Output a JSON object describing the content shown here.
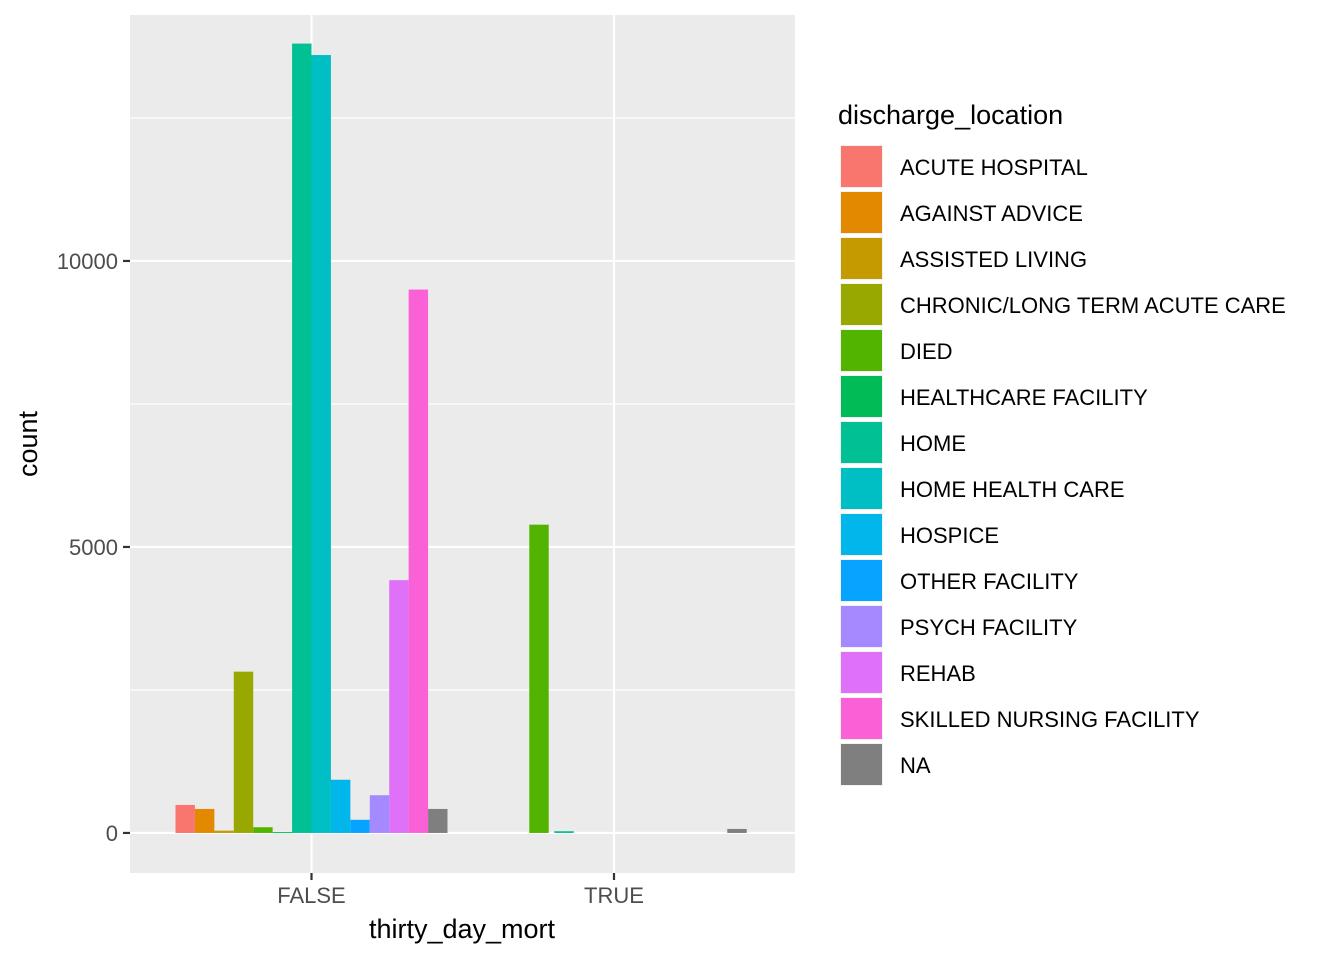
{
  "chart_data": {
    "type": "bar",
    "position": "dodge",
    "xlabel": "thirty_day_mort",
    "ylabel": "count",
    "categories": [
      "FALSE",
      "TRUE"
    ],
    "ylim": [
      -700,
      14300
    ],
    "yticks": [
      0,
      5000,
      10000
    ],
    "grid": true,
    "panel_background": "#EBEBEB",
    "legend": {
      "title": "discharge_location",
      "placement": "right"
    },
    "series": [
      {
        "name": "ACUTE HOSPITAL",
        "color": "#F8766D",
        "values": [
          490,
          null
        ]
      },
      {
        "name": "AGAINST ADVICE",
        "color": "#E38900",
        "values": [
          420,
          null
        ]
      },
      {
        "name": "ASSISTED LIVING",
        "color": "#C49A00",
        "values": [
          40,
          null
        ]
      },
      {
        "name": "CHRONIC/LONG TERM ACUTE CARE",
        "color": "#99A800",
        "values": [
          2820,
          null
        ]
      },
      {
        "name": "DIED",
        "color": "#53B400",
        "values": [
          100,
          5390
        ]
      },
      {
        "name": "HEALTHCARE FACILITY",
        "color": "#00BC56",
        "values": [
          15,
          null
        ]
      },
      {
        "name": "HOME",
        "color": "#00C094",
        "values": [
          13800,
          30
        ]
      },
      {
        "name": "HOME HEALTH CARE",
        "color": "#00BFC4",
        "values": [
          13600,
          null
        ]
      },
      {
        "name": "HOSPICE",
        "color": "#00B6EB",
        "values": [
          930,
          null
        ]
      },
      {
        "name": "OTHER FACILITY",
        "color": "#06A4FF",
        "values": [
          230,
          null
        ]
      },
      {
        "name": "PSYCH FACILITY",
        "color": "#A58AFF",
        "values": [
          660,
          null
        ]
      },
      {
        "name": "REHAB",
        "color": "#DF70F8",
        "values": [
          4420,
          null
        ]
      },
      {
        "name": "SKILLED NURSING FACILITY",
        "color": "#FB61D7",
        "values": [
          9500,
          null
        ]
      },
      {
        "name": "NA",
        "color": "#FF66A8",
        "values": [
          420,
          70
        ]
      }
    ],
    "na_color": "#7F7F7F"
  }
}
